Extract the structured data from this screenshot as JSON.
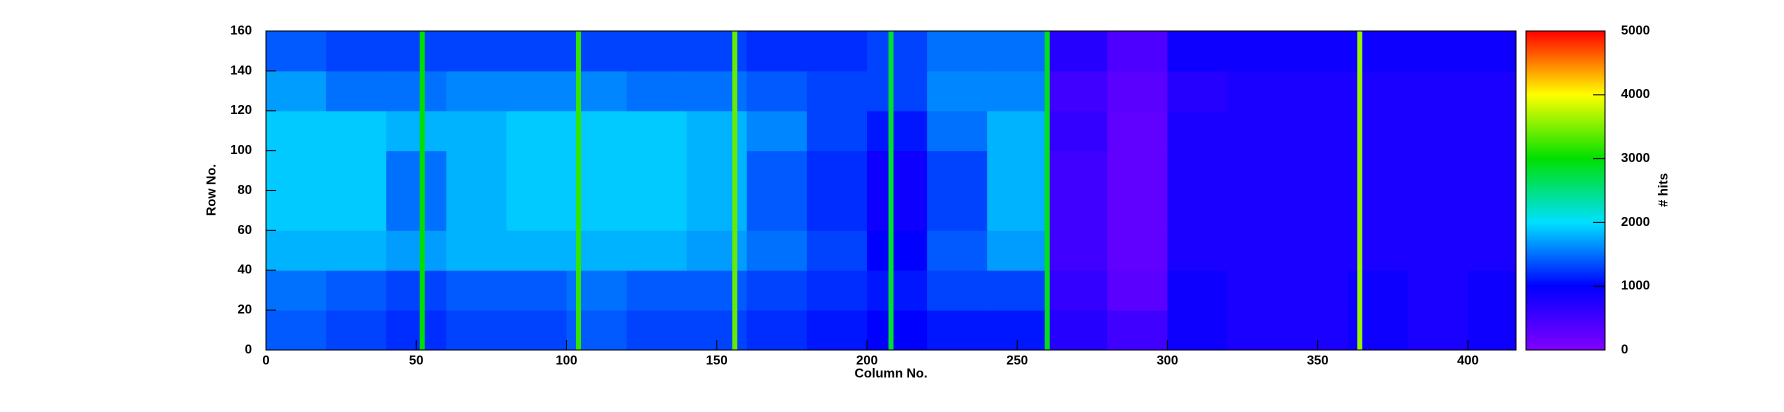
{
  "chart_data": {
    "type": "heatmap",
    "xlabel": "Column No.",
    "ylabel": "Row No.",
    "zlabel": "# hits",
    "xlim": [
      0,
      416
    ],
    "ylim": [
      0,
      160
    ],
    "zlim": [
      0,
      5000
    ],
    "xticks": [
      0,
      50,
      100,
      150,
      200,
      250,
      300,
      350,
      400
    ],
    "yticks": [
      0,
      20,
      40,
      60,
      80,
      100,
      120,
      140,
      160
    ],
    "zticks": [
      0,
      1000,
      2000,
      3000,
      4000,
      5000
    ],
    "colorscale": [
      "#8000ff",
      "#0000ff",
      "#00e0ff",
      "#00e000",
      "#ffff00",
      "#ff0000"
    ],
    "x_edges": [
      0,
      20,
      40,
      60,
      80,
      100,
      120,
      140,
      160,
      180,
      200,
      220,
      240,
      260,
      280,
      300,
      320,
      340,
      360,
      380,
      400,
      416
    ],
    "y_edges": [
      0,
      20,
      40,
      60,
      80,
      100,
      120,
      140,
      160
    ],
    "z": [
      [
        1400,
        1300,
        1200,
        1300,
        1300,
        1400,
        1300,
        1300,
        1200,
        1100,
        1000,
        1100,
        1100,
        700,
        500,
        900,
        800,
        800,
        900,
        800,
        900
      ],
      [
        1500,
        1400,
        1300,
        1400,
        1400,
        1500,
        1400,
        1400,
        1300,
        1200,
        1100,
        1300,
        1300,
        600,
        300,
        900,
        800,
        800,
        900,
        800,
        900
      ],
      [
        1800,
        1800,
        1700,
        1800,
        1800,
        1800,
        1800,
        1700,
        1500,
        1300,
        1000,
        1400,
        1700,
        500,
        250,
        800,
        800,
        800,
        800,
        800,
        800
      ],
      [
        1900,
        1900,
        1500,
        1800,
        1900,
        1900,
        1900,
        1800,
        1400,
        1200,
        900,
        1300,
        1800,
        500,
        250,
        800,
        800,
        800,
        800,
        800,
        800
      ],
      [
        1900,
        1900,
        1500,
        1800,
        1900,
        1900,
        1900,
        1800,
        1400,
        1200,
        900,
        1300,
        1800,
        500,
        250,
        800,
        800,
        800,
        800,
        800,
        800
      ],
      [
        1900,
        1900,
        1800,
        1800,
        1900,
        1900,
        1900,
        1800,
        1600,
        1300,
        1100,
        1500,
        1800,
        600,
        250,
        800,
        800,
        800,
        800,
        800,
        800
      ],
      [
        1700,
        1500,
        1500,
        1600,
        1600,
        1600,
        1500,
        1500,
        1400,
        1300,
        1300,
        1600,
        1600,
        500,
        300,
        700,
        800,
        800,
        800,
        800,
        800
      ],
      [
        1400,
        1300,
        1300,
        1300,
        1300,
        1300,
        1300,
        1300,
        1200,
        1200,
        1300,
        1500,
        1500,
        700,
        400,
        900,
        900,
        900,
        900,
        900,
        900
      ]
    ],
    "hot_columns": {
      "x": [
        52,
        104,
        156,
        208,
        260,
        364
      ],
      "values": [
        3000,
        3200,
        3400,
        2800,
        2900,
        3600
      ]
    }
  }
}
